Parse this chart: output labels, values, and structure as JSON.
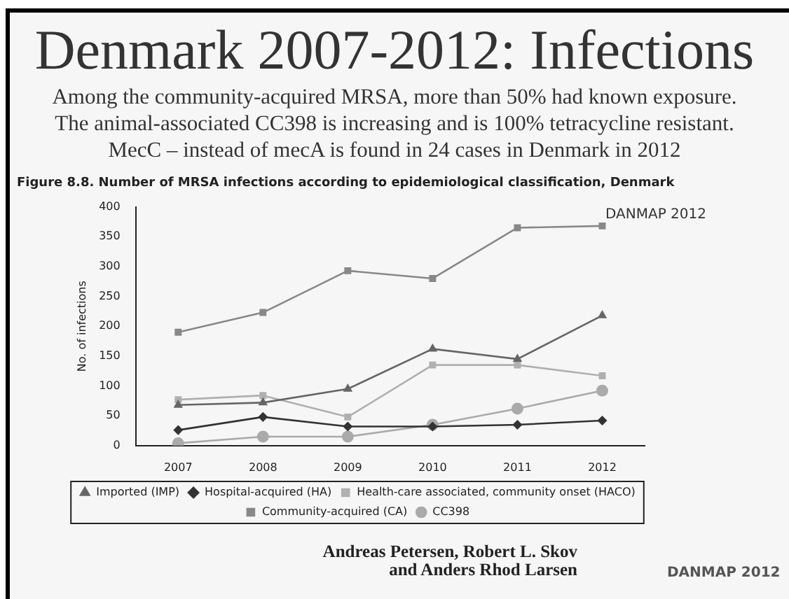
{
  "chart_data": {
    "type": "line",
    "title": "Denmark 2007-2012: Infections",
    "subtitle": "Among the community-acquired MRSA, more than 50% had known exposure.\nThe animal-associated CC398 is increasing and is 100% tetracycline resistant.\nMecC – instead of mecA is found in 24 cases in Denmark in 2012",
    "ylabel": "No. of infections",
    "categories": [
      "2007",
      "2008",
      "2009",
      "2010",
      "2011",
      "2012"
    ],
    "series": [
      {
        "name": "Imported (IMP)",
        "color": "#666666",
        "marker": "triangle",
        "values": [
          68,
          72,
          95,
          162,
          145,
          218
        ]
      },
      {
        "name": "Hospital-acquired (HA)",
        "color": "#333333",
        "marker": "diamond",
        "values": [
          26,
          48,
          32,
          32,
          35,
          42
        ]
      },
      {
        "name": "Health-care associated, community onset (HACO)",
        "color": "#b0b0b0",
        "marker": "square",
        "values": [
          77,
          84,
          48,
          135,
          135,
          117
        ]
      },
      {
        "name": "Community-acquired (CA)",
        "color": "#888888",
        "marker": "square",
        "values": [
          190,
          223,
          293,
          280,
          365,
          368
        ]
      },
      {
        "name": "CC398",
        "color": "#aaaaaa",
        "marker": "circle",
        "values": [
          4,
          15,
          15,
          35,
          62,
          92
        ]
      }
    ],
    "ylim": [
      0,
      400
    ],
    "yticks": [
      0,
      50,
      100,
      150,
      200,
      250,
      300,
      350,
      400
    ],
    "grid": false,
    "legend": "bottom",
    "line_style": "solid",
    "annotations": [
      "Figure 8.8. Number of MRSA infections according to epidemiological classification, Denmark",
      "DANMAP 2012",
      "Andreas Petersen, Robert L. Skov\nand Anders Rhod Larsen",
      "DANMAP 2012"
    ]
  }
}
